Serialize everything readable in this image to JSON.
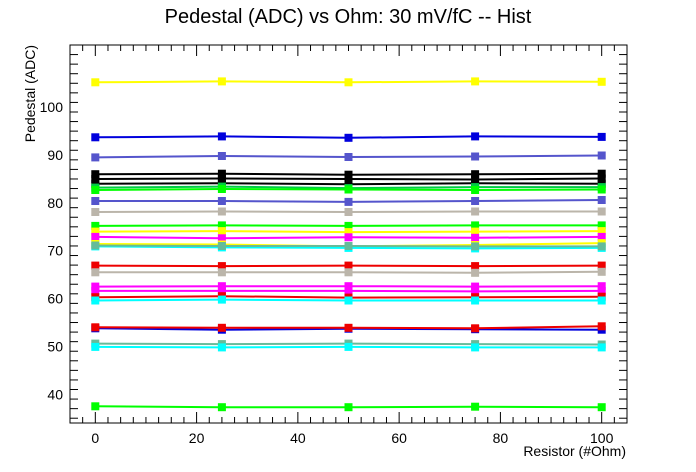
{
  "chart_data": {
    "type": "line",
    "title": "Pedestal (ADC) vs Ohm: 30 mV/fC -- Hist",
    "xlabel": "Resistor (#Ohm)",
    "ylabel": "Pedestal (ADC)",
    "xlim": [
      -5,
      105
    ],
    "ylim": [
      34,
      113
    ],
    "grid": false,
    "x_ticks": [
      0,
      20,
      40,
      60,
      80,
      100
    ],
    "y_ticks": [
      40,
      50,
      60,
      70,
      80,
      90,
      100
    ],
    "x_tick_labels": [
      "0",
      "20",
      "40",
      "60",
      "80",
      "100"
    ],
    "y_tick_labels": [
      "40",
      "50",
      "60",
      "70",
      "80",
      "90",
      "100"
    ],
    "x": [
      0,
      25,
      50,
      75,
      100
    ],
    "series": [
      {
        "color": "#ffff00",
        "values": [
          105.2,
          105.4,
          105.2,
          105.4,
          105.3
        ]
      },
      {
        "color": "#0000dd",
        "values": [
          93.7,
          93.9,
          93.6,
          93.9,
          93.8
        ]
      },
      {
        "color": "#5555cc",
        "values": [
          89.5,
          89.8,
          89.6,
          89.7,
          89.9
        ]
      },
      {
        "color": "#000000",
        "values": [
          86.0,
          86.1,
          85.9,
          86.0,
          86.1
        ]
      },
      {
        "color": "#000000",
        "values": [
          85.0,
          85.1,
          85.0,
          84.9,
          85.1
        ]
      },
      {
        "color": "#000000",
        "values": [
          84.0,
          84.1,
          83.9,
          84.1,
          84.0
        ]
      },
      {
        "color": "#00cc44",
        "values": [
          83.2,
          83.4,
          83.1,
          83.3,
          83.3
        ]
      },
      {
        "color": "#00ff00",
        "values": [
          82.7,
          82.9,
          82.8,
          82.7,
          82.8
        ]
      },
      {
        "color": "#5555cc",
        "values": [
          80.4,
          80.4,
          80.2,
          80.4,
          80.6
        ]
      },
      {
        "color": "#bbb5aa",
        "values": [
          78.1,
          78.2,
          78.1,
          78.2,
          78.2
        ]
      },
      {
        "color": "#00ff00",
        "values": [
          75.2,
          75.3,
          75.2,
          75.3,
          75.3
        ]
      },
      {
        "color": "#ffff00",
        "values": [
          74.0,
          74.1,
          73.9,
          74.0,
          74.1
        ]
      },
      {
        "color": "#ff00ff",
        "values": [
          72.9,
          72.6,
          72.8,
          72.7,
          72.9
        ]
      },
      {
        "color": "#ffff00",
        "values": [
          71.4,
          71.3,
          70.9,
          71.2,
          71.6
        ]
      },
      {
        "color": "#00ffff",
        "values": [
          70.9,
          70.7,
          70.6,
          70.5,
          70.6
        ]
      },
      {
        "color": "#66bb99",
        "values": [
          71.1,
          71.0,
          71.0,
          70.9,
          70.9
        ]
      },
      {
        "color": "#ee0000",
        "values": [
          66.9,
          66.8,
          66.9,
          66.8,
          66.9
        ]
      },
      {
        "color": "#bbb5aa",
        "values": [
          65.5,
          65.5,
          65.5,
          65.4,
          65.6
        ]
      },
      {
        "color": "#ff00ff",
        "values": [
          62.5,
          62.6,
          62.6,
          62.5,
          62.6
        ]
      },
      {
        "color": "#ff00ff",
        "values": [
          61.6,
          61.6,
          61.6,
          61.5,
          61.6
        ]
      },
      {
        "color": "#ee0000",
        "values": [
          60.3,
          60.5,
          60.2,
          60.3,
          60.4
        ]
      },
      {
        "color": "#00ffff",
        "values": [
          59.6,
          59.8,
          59.6,
          59.6,
          59.6
        ]
      },
      {
        "color": "#0000dd",
        "values": [
          53.8,
          53.5,
          53.7,
          53.6,
          53.5
        ]
      },
      {
        "color": "#ee0000",
        "values": [
          54.0,
          53.9,
          53.9,
          53.8,
          54.2
        ]
      },
      {
        "color": "#66bb99",
        "values": [
          50.6,
          50.5,
          50.6,
          50.5,
          50.4
        ]
      },
      {
        "color": "#00ffff",
        "values": [
          49.9,
          49.8,
          49.9,
          49.8,
          49.8
        ]
      },
      {
        "color": "#00ff00",
        "values": [
          37.5,
          37.3,
          37.3,
          37.4,
          37.3
        ]
      }
    ]
  }
}
